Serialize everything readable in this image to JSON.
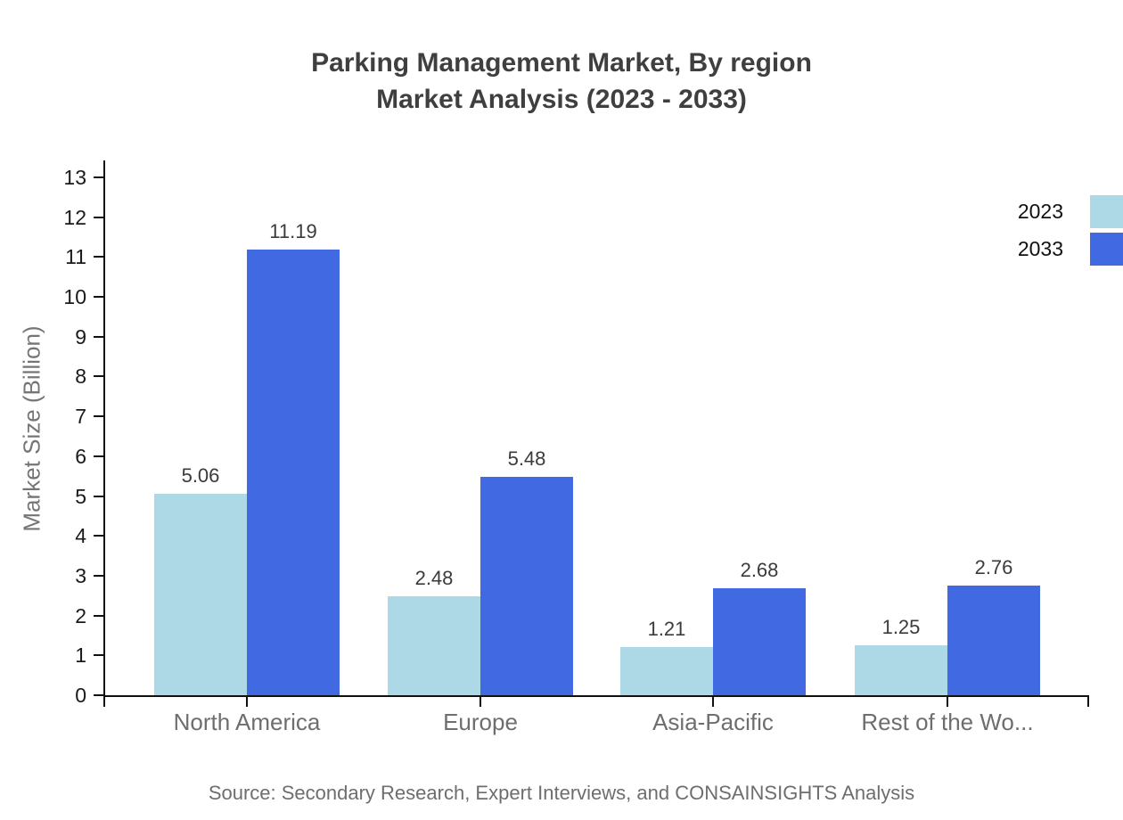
{
  "title": {
    "line1": "Parking Management Market, By region",
    "line2": "Market Analysis (2023 - 2033)"
  },
  "source_note": "Source: Secondary Research, Expert Interviews, and CONSAINSIGHTS Analysis",
  "chart_data": {
    "type": "bar",
    "title": "Parking Management Market, By region Market Analysis (2023 - 2033)",
    "categories": [
      "North America",
      "Europe",
      "Asia-Pacific",
      "Rest of the Wo..."
    ],
    "series": [
      {
        "name": "2023",
        "color": "#ADD8E6",
        "values": [
          5.06,
          2.48,
          1.21,
          1.25
        ]
      },
      {
        "name": "2033",
        "color": "#4169E1",
        "values": [
          11.19,
          5.48,
          2.68,
          2.76
        ]
      }
    ],
    "xlabel": "",
    "ylabel": "Market Size (Billion)",
    "ylim": [
      0,
      13
    ],
    "ytick_interval": 1,
    "ytick_labels": [
      "0",
      "1",
      "2",
      "3",
      "4",
      "5",
      "6",
      "7",
      "8",
      "9",
      "10",
      "11",
      "12",
      "13"
    ],
    "grid": false,
    "legend_position": "top-right",
    "value_labels_shown": true
  },
  "colors": {
    "background": "#ffffff",
    "axis": "#111111",
    "tick_label": "#1a1a1a",
    "category_label": "#6e6e6e",
    "value_label": "#3b3b3b",
    "title": "#3f3f3f",
    "y_axis_title": "#757575",
    "source": "#6e6e6e",
    "series_2023": "#ADD8E6",
    "series_2033": "#4169E1"
  }
}
